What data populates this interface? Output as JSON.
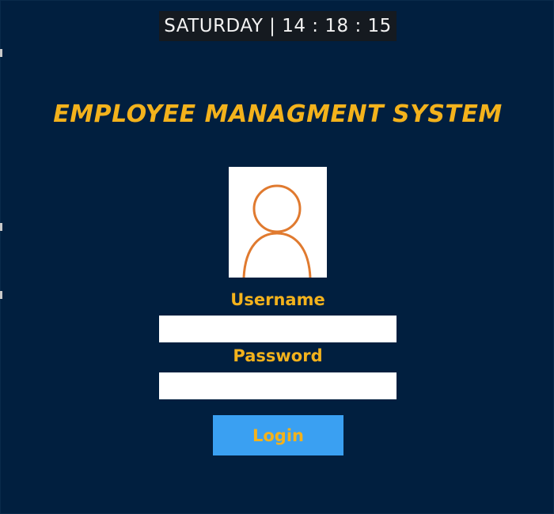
{
  "clock": {
    "text": "SATURDAY | 14 : 18 : 15"
  },
  "app": {
    "title": "EMPLOYEE MANAGMENT SYSTEM"
  },
  "avatar": {
    "icon": "user-icon",
    "stroke_color": "#e07a2f"
  },
  "form": {
    "username_label": "Username",
    "username_value": "",
    "password_label": "Password",
    "password_value": "",
    "login_label": "Login"
  },
  "colors": {
    "background": "#011f3f",
    "accent": "#f3b21c",
    "button": "#3aa0f2",
    "clock_bg": "#151a20"
  }
}
